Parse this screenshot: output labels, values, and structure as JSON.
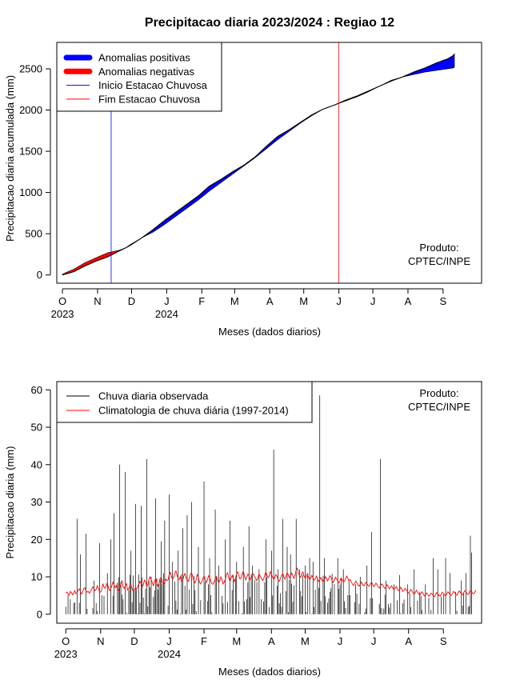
{
  "figure_title": "Precipitacao diaria 2023/2024 : Regiao 12",
  "colors": {
    "positive": "#0000ff",
    "negative": "#ff0000",
    "onset": "#0000ff",
    "end": "#ff0000",
    "observed": "#000000",
    "climatology": "#ff0000"
  },
  "chart_data": [
    {
      "type": "area",
      "title": "Precipitacao diaria 2023/2024 : Regiao 12",
      "xlabel": "Meses (dados diarios)",
      "ylabel": "Precipitacao diaria acumulada (mm)",
      "x_unit": "day index starting 2023-10-01",
      "xlim": [
        -5,
        370
      ],
      "ylim": [
        -100,
        2820
      ],
      "yticks": [
        0,
        500,
        1000,
        1500,
        2000,
        2500
      ],
      "month_ticks": [
        {
          "label": "O",
          "day": 0
        },
        {
          "label": "N",
          "day": 31
        },
        {
          "label": "D",
          "day": 61
        },
        {
          "label": "J",
          "day": 92
        },
        {
          "label": "F",
          "day": 123
        },
        {
          "label": "M",
          "day": 152
        },
        {
          "label": "A",
          "day": 183
        },
        {
          "label": "M",
          "day": 213
        },
        {
          "label": "J",
          "day": 244
        },
        {
          "label": "J",
          "day": 274
        },
        {
          "label": "A",
          "day": 305
        },
        {
          "label": "S",
          "day": 336
        }
      ],
      "year_labels": [
        {
          "label": "2023",
          "day": 0
        },
        {
          "label": "2024",
          "day": 92
        }
      ],
      "legend": {
        "position": "top-left",
        "entries": [
          {
            "label": "Anomalias positivas",
            "style": "thick",
            "color": "#0000ff"
          },
          {
            "label": "Anomalias negativas",
            "style": "thick",
            "color": "#ff0000"
          },
          {
            "label": "Inicio Estacao Chuvosa",
            "style": "thin",
            "color": "#0000ff"
          },
          {
            "label": "Fim Estacao Chuvosa",
            "style": "thin",
            "color": "#ff0000"
          }
        ]
      },
      "annotation": [
        "Produto:",
        "CPTEC/INPE"
      ],
      "onset_day": 43,
      "end_day": 244,
      "observed_points": [
        [
          0,
          0
        ],
        [
          10,
          40
        ],
        [
          20,
          110
        ],
        [
          30,
          170
        ],
        [
          40,
          220
        ],
        [
          50,
          290
        ],
        [
          56,
          330
        ],
        [
          60,
          360
        ],
        [
          70,
          450
        ],
        [
          80,
          550
        ],
        [
          90,
          660
        ],
        [
          100,
          760
        ],
        [
          110,
          860
        ],
        [
          120,
          960
        ],
        [
          130,
          1080
        ],
        [
          140,
          1160
        ],
        [
          150,
          1250
        ],
        [
          160,
          1330
        ],
        [
          170,
          1430
        ],
        [
          180,
          1560
        ],
        [
          190,
          1680
        ],
        [
          200,
          1760
        ],
        [
          210,
          1850
        ],
        [
          220,
          1940
        ],
        [
          230,
          2010
        ],
        [
          240,
          2060
        ],
        [
          250,
          2120
        ],
        [
          260,
          2170
        ],
        [
          270,
          2230
        ],
        [
          280,
          2290
        ],
        [
          290,
          2350
        ],
        [
          300,
          2400
        ],
        [
          310,
          2460
        ],
        [
          320,
          2510
        ],
        [
          330,
          2570
        ],
        [
          340,
          2620
        ],
        [
          345,
          2660
        ],
        [
          346,
          2680
        ]
      ],
      "climatology_points": [
        [
          0,
          10
        ],
        [
          10,
          70
        ],
        [
          20,
          150
        ],
        [
          30,
          210
        ],
        [
          40,
          270
        ],
        [
          50,
          300
        ],
        [
          56,
          330
        ],
        [
          60,
          370
        ],
        [
          70,
          450
        ],
        [
          80,
          520
        ],
        [
          90,
          610
        ],
        [
          100,
          710
        ],
        [
          110,
          810
        ],
        [
          120,
          910
        ],
        [
          130,
          1020
        ],
        [
          140,
          1120
        ],
        [
          150,
          1220
        ],
        [
          160,
          1320
        ],
        [
          170,
          1420
        ],
        [
          180,
          1530
        ],
        [
          190,
          1640
        ],
        [
          200,
          1740
        ],
        [
          210,
          1840
        ],
        [
          220,
          1930
        ],
        [
          230,
          2010
        ],
        [
          240,
          2060
        ],
        [
          250,
          2110
        ],
        [
          260,
          2160
        ],
        [
          270,
          2220
        ],
        [
          280,
          2290
        ],
        [
          290,
          2360
        ],
        [
          300,
          2400
        ],
        [
          310,
          2430
        ],
        [
          320,
          2460
        ],
        [
          330,
          2480
        ],
        [
          340,
          2500
        ],
        [
          345,
          2510
        ],
        [
          346,
          2520
        ]
      ]
    },
    {
      "type": "bar",
      "xlabel": "Meses (dados diarios)",
      "ylabel": "Precipitacao diaria (mm)",
      "x_unit": "day index starting 2023-10-01",
      "xlim": [
        -8,
        370
      ],
      "ylim": [
        -2.4,
        62.2
      ],
      "yticks": [
        0,
        10,
        20,
        30,
        40,
        50,
        60
      ],
      "month_ticks": [
        {
          "label": "O",
          "day": 0
        },
        {
          "label": "N",
          "day": 31
        },
        {
          "label": "D",
          "day": 61
        },
        {
          "label": "J",
          "day": 92
        },
        {
          "label": "F",
          "day": 123
        },
        {
          "label": "M",
          "day": 152
        },
        {
          "label": "A",
          "day": 183
        },
        {
          "label": "M",
          "day": 213
        },
        {
          "label": "J",
          "day": 244
        },
        {
          "label": "J",
          "day": 274
        },
        {
          "label": "A",
          "day": 305
        },
        {
          "label": "S",
          "day": 336
        }
      ],
      "year_labels": [
        {
          "label": "2023",
          "day": 0
        },
        {
          "label": "2024",
          "day": 92
        }
      ],
      "legend": {
        "position": "top-left",
        "entries": [
          {
            "label": "Chuva diaria observada",
            "color": "#000000"
          },
          {
            "label": "Climatologia de chuva diária (1997-2014)",
            "color": "#ff0000"
          }
        ]
      },
      "annotation": [
        "Produto:",
        "CPTEC/INPE"
      ],
      "peaks": [
        [
          0,
          2
        ],
        [
          10,
          25.5
        ],
        [
          13,
          16
        ],
        [
          18,
          21.5
        ],
        [
          25,
          9
        ],
        [
          30,
          19
        ],
        [
          37,
          11
        ],
        [
          40,
          20
        ],
        [
          43,
          27
        ],
        [
          48,
          40
        ],
        [
          53,
          38
        ],
        [
          58,
          17
        ],
        [
          62,
          29.5
        ],
        [
          67,
          29
        ],
        [
          72,
          41.5
        ],
        [
          76,
          10
        ],
        [
          80,
          31
        ],
        [
          85,
          19.5
        ],
        [
          88,
          25
        ],
        [
          92,
          32
        ],
        [
          95,
          14
        ],
        [
          100,
          17
        ],
        [
          104,
          23
        ],
        [
          108,
          26.5
        ],
        [
          112,
          30
        ],
        [
          118,
          18
        ],
        [
          123,
          35.5
        ],
        [
          128,
          15
        ],
        [
          133,
          28
        ],
        [
          136,
          13
        ],
        [
          142,
          20
        ],
        [
          146,
          25
        ],
        [
          152,
          14
        ],
        [
          158,
          18
        ],
        [
          163,
          23.5
        ],
        [
          166,
          13
        ],
        [
          172,
          12
        ],
        [
          178,
          20
        ],
        [
          183,
          17
        ],
        [
          185,
          44
        ],
        [
          189,
          12
        ],
        [
          193,
          25.5
        ],
        [
          197,
          18
        ],
        [
          200,
          16
        ],
        [
          205,
          25.5
        ],
        [
          208,
          12
        ],
        [
          213,
          13
        ],
        [
          217,
          15
        ],
        [
          220,
          14
        ],
        [
          226,
          58.5
        ],
        [
          230,
          15
        ],
        [
          235,
          6
        ],
        [
          242,
          15
        ],
        [
          247,
          12
        ],
        [
          252,
          9
        ],
        [
          258,
          8
        ],
        [
          262,
          10
        ],
        [
          268,
          13
        ],
        [
          272,
          22
        ],
        [
          280,
          41.5
        ],
        [
          285,
          9
        ],
        [
          292,
          8
        ],
        [
          297,
          10.5
        ],
        [
          304,
          8
        ],
        [
          310,
          12
        ],
        [
          315,
          6
        ],
        [
          320,
          8
        ],
        [
          327,
          15
        ],
        [
          331,
          12
        ],
        [
          338,
          15
        ],
        [
          342,
          11
        ],
        [
          347,
          6
        ],
        [
          352,
          9
        ],
        [
          356,
          11
        ],
        [
          360,
          21
        ],
        [
          361,
          16.5
        ]
      ],
      "climatology_daily": [
        5.7,
        5.9,
        5.4,
        5.1,
        6.1,
        5.8,
        5.2,
        5.6,
        6.3,
        5.5,
        5.8,
        6.5,
        6.8,
        6.1,
        5.4,
        5.9,
        6.9,
        7.1,
        6.2,
        5.9,
        6.1,
        5.6,
        6.2,
        6.7,
        7.3,
        6.8,
        6.3,
        6.6,
        7.6,
        6.9,
        6.1,
        5.9,
        6.6,
        8.2,
        7.2,
        6.9,
        7.9,
        8.4,
        7.0,
        6.3,
        6.8,
        7.6,
        8.6,
        7.8,
        7.1,
        7.7,
        6.6,
        6.2,
        7.0,
        8.1,
        8.9,
        7.4,
        6.9,
        7.6,
        8.2,
        6.5,
        6.9,
        7.7,
        7.9,
        6.8,
        6.1,
        6.6,
        7.1,
        6.7,
        7.5,
        8.0,
        8.8,
        8.1,
        7.3,
        7.9,
        9.1,
        8.7,
        7.4,
        7.8,
        9.3,
        10.0,
        9.2,
        8.4,
        7.6,
        8.9,
        9.6,
        8.3,
        7.5,
        8.3,
        9.7,
        9.9,
        8.6,
        7.9,
        8.6,
        9.4,
        9.0,
        9.2,
        10.5,
        11.2,
        10.1,
        9.4,
        9.8,
        10.9,
        11.6,
        10.4,
        9.6,
        9.3,
        10.1,
        8.6,
        9.0,
        10.2,
        10.9,
        9.8,
        9.1,
        8.8,
        9.7,
        10.8,
        11.1,
        9.9,
        8.9,
        8.4,
        9.3,
        10.6,
        9.8,
        8.5,
        8.1,
        8.7,
        9.6,
        10.2,
        9.4,
        8.5,
        9.1,
        10.3,
        9.9,
        8.8,
        8.2,
        8.0,
        8.7,
        9.5,
        10.1,
        9.2,
        8.4,
        8.9,
        10.0,
        9.3,
        8.1,
        8.6,
        9.4,
        10.7,
        11.1,
        9.8,
        8.8,
        9.5,
        10.4,
        9.6,
        8.7,
        9.6,
        10.8,
        11.3,
        10.3,
        9.4,
        9.7,
        10.9,
        11.5,
        10.2,
        9.2,
        9.8,
        10.7,
        10.3,
        9.3,
        9.6,
        10.5,
        10.8,
        10.0,
        9.5,
        9.0,
        9.7,
        10.8,
        10.2,
        9.6,
        9.0,
        9.4,
        10.4,
        11.3,
        10.5,
        9.8,
        10.2,
        11.4,
        10.7,
        9.9,
        9.3,
        9.9,
        10.6,
        10.1,
        9.2,
        8.8,
        9.5,
        10.4,
        10.9,
        10.0,
        9.4,
        10.2,
        11.1,
        10.6,
        9.7,
        10.3,
        11.0,
        10.2,
        9.6,
        10.5,
        11.8,
        12.3,
        11.0,
        10.3,
        9.9,
        10.8,
        11.3,
        10.2,
        9.6,
        10.1,
        10.9,
        9.8,
        9.3,
        9.7,
        10.4,
        9.6,
        9.1,
        9.5,
        10.2,
        9.4,
        8.8,
        9.2,
        9.8,
        9.1,
        8.6,
        9.3,
        10.1,
        9.5,
        8.9,
        9.6,
        10.3,
        9.8,
        9.0,
        8.5,
        9.2,
        9.9,
        9.4,
        8.8,
        8.4,
        9.0,
        9.7,
        9.2,
        8.6,
        8.8,
        9.5,
        10.2,
        9.6,
        8.9,
        9.3,
        8.7,
        8.1,
        7.7,
        8.2,
        8.9,
        8.4,
        7.8,
        7.5,
        8.0,
        8.6,
        8.1,
        7.6,
        7.9,
        8.5,
        8.2,
        7.7,
        7.5,
        8.1,
        8.6,
        8.0,
        7.4,
        7.7,
        8.3,
        7.9,
        7.3,
        7.0,
        7.5,
        8.1,
        7.8,
        7.2,
        6.9,
        7.4,
        7.9,
        7.3,
        6.8,
        7.1,
        7.6,
        7.0,
        6.6,
        6.9,
        7.4,
        6.8,
        6.3,
        6.6,
        7.2,
        6.7,
        6.1,
        6.4,
        6.9,
        6.5,
        6.0,
        5.6,
        6.1,
        6.6,
        6.2,
        5.7,
        5.3,
        5.8,
        6.4,
        5.9,
        5.4,
        5.1,
        5.6,
        6.0,
        5.5,
        4.9,
        5.2,
        5.7,
        5.3,
        4.8,
        5.1,
        5.6,
        5.4,
        4.9,
        4.7,
        5.2,
        5.8,
        5.5,
        5.0,
        4.8,
        5.3,
        5.9,
        5.6,
        5.1,
        4.9,
        5.4,
        6.0,
        5.7,
        5.2,
        5.0,
        5.5,
        6.1,
        5.8,
        5.3,
        5.1,
        5.6,
        6.2,
        5.9,
        5.4,
        5.2,
        5.7,
        6.3,
        6.0,
        5.5,
        5.3,
        5.8,
        6.4,
        6.1,
        5.6,
        5.4,
        5.9,
        6.5
      ]
    }
  ]
}
